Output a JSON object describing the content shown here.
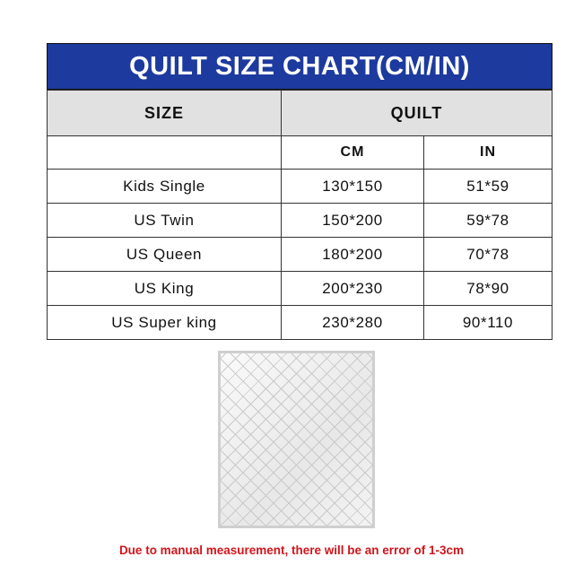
{
  "title": "QUILT SIZE CHART(CM/IN)",
  "table": {
    "header": {
      "size": "SIZE",
      "quilt": "QUILT"
    },
    "subheader": {
      "cm": "CM",
      "in": "IN"
    },
    "rows": [
      {
        "size": "Kids Single",
        "cm": "130*150",
        "in": "51*59"
      },
      {
        "size": "US Twin",
        "cm": "150*200",
        "in": "59*78"
      },
      {
        "size": "US Queen",
        "cm": "180*200",
        "in": "70*78"
      },
      {
        "size": "US King",
        "cm": "200*230",
        "in": "78*90"
      },
      {
        "size": "US Super king",
        "cm": "230*280",
        "in": "90*110"
      }
    ]
  },
  "note": "Due to manual measurement, there will be an error of 1-3cm",
  "colors": {
    "title_bg": "#1d3a9f",
    "header_bg": "#e1e1e1",
    "note": "#d4141a"
  }
}
